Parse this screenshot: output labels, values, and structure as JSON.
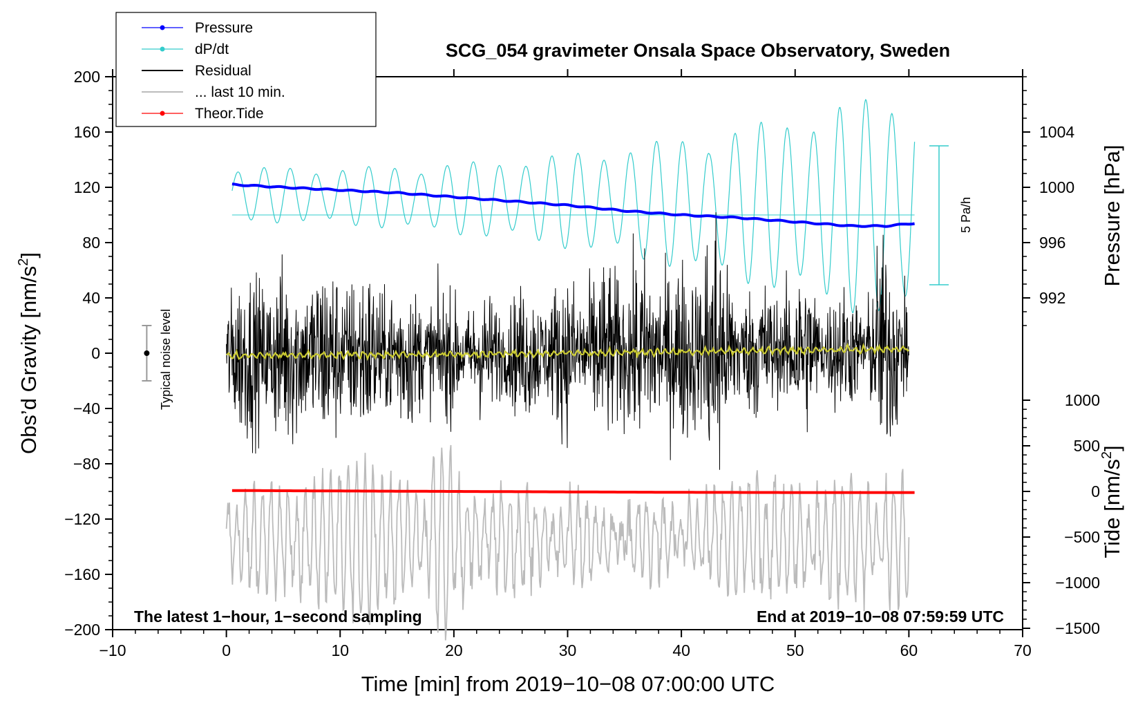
{
  "chart_data": {
    "type": "line",
    "title": "SCG_054 gravimeter Onsala Space Observatory, Sweden",
    "xlabel": "Time [min] from 2019−10−08 07:00:00 UTC",
    "ylabel_left": "Obs’d Gravity [nm/s",
    "ylabel_left_sup": "2",
    "ylabel_left_close": "]",
    "ylabel_right_top": "Pressure [hPa]",
    "ylabel_right_bottom": "Tide [nm/s",
    "ylabel_right_bottom_sup": "2",
    "ylabel_right_bottom_close": "]",
    "xlim": [
      -10,
      70
    ],
    "ylim": [
      -200,
      200
    ],
    "x_ticks": [
      "−10",
      "0",
      "10",
      "20",
      "30",
      "40",
      "50",
      "60",
      "70"
    ],
    "y_ticks_left": [
      "200",
      "160",
      "120",
      "80",
      "40",
      "0",
      "−40",
      "−80",
      "−120",
      "−160",
      "−200"
    ],
    "pressure_axis": {
      "ticks": [
        "1004",
        "1000",
        "996",
        "992"
      ],
      "values": [
        1004,
        1000,
        996,
        992
      ]
    },
    "tide_axis": {
      "ticks": [
        "1000",
        "500",
        "0",
        "−500",
        "−1000",
        "−1500"
      ],
      "values": [
        1000,
        500,
        0,
        -500,
        -1000,
        -1500
      ]
    },
    "note_left": "The latest 1−hour, 1−second sampling",
    "note_right": "End at 2019−10−08 07:59:59 UTC",
    "noise_label": "Typical noise level",
    "noise_bar": {
      "x": -7,
      "low": -20,
      "high": 20
    },
    "dpdt_scale_label": "5 Pa/h",
    "legend": [
      {
        "label": "Pressure",
        "color": "#0000ff",
        "marker": true
      },
      {
        "label": "dP/dt",
        "color": "#33cccc",
        "marker": true
      },
      {
        "label": "Residual",
        "color": "#000000",
        "marker": false
      },
      {
        "label": "... last 10 min.",
        "color": "#bbbbbb",
        "marker": false
      },
      {
        "label": "Theor.Tide",
        "color": "#ff0000",
        "marker": true
      }
    ],
    "series": [
      {
        "name": "Pressure",
        "unit": "hPa",
        "color": "#0000ff",
        "x": [
          0.5,
          5,
          10,
          15,
          20,
          25,
          30,
          35,
          40,
          45,
          50,
          55,
          58,
          60.5
        ],
        "values": [
          1000.2,
          1000.0,
          999.8,
          999.6,
          999.3,
          999.0,
          998.7,
          998.3,
          998.0,
          997.8,
          997.5,
          997.2,
          997.2,
          997.4
        ]
      },
      {
        "name": "Theor.Tide",
        "unit": "nm/s2",
        "color": "#ff0000",
        "x": [
          0.5,
          10,
          20,
          30,
          40,
          50,
          60.5
        ],
        "values": [
          10,
          5,
          0,
          -5,
          -10,
          -12,
          -12
        ]
      },
      {
        "name": "Residual trend (yellow)",
        "unit": "nm/s2",
        "color": "#cccc33",
        "x": [
          0,
          10,
          20,
          30,
          40,
          50,
          60
        ],
        "values": [
          -2,
          -1,
          -1,
          0,
          1,
          2,
          3
        ]
      },
      {
        "name": "dP/dt",
        "color": "#33cccc",
        "x_range": [
          0.5,
          60.5
        ],
        "baseline_gravity": 100,
        "amplitude_start": 20,
        "amplitude_end": 90,
        "period_min": 2.3
      },
      {
        "name": "Residual",
        "color": "#000000",
        "x_range": [
          0,
          60
        ],
        "amplitude": 40
      },
      {
        "name": "... last 10 min.",
        "color": "#bbbbbb",
        "x_range": [
          0,
          60
        ],
        "center": -135,
        "amplitude": 35
      }
    ]
  }
}
